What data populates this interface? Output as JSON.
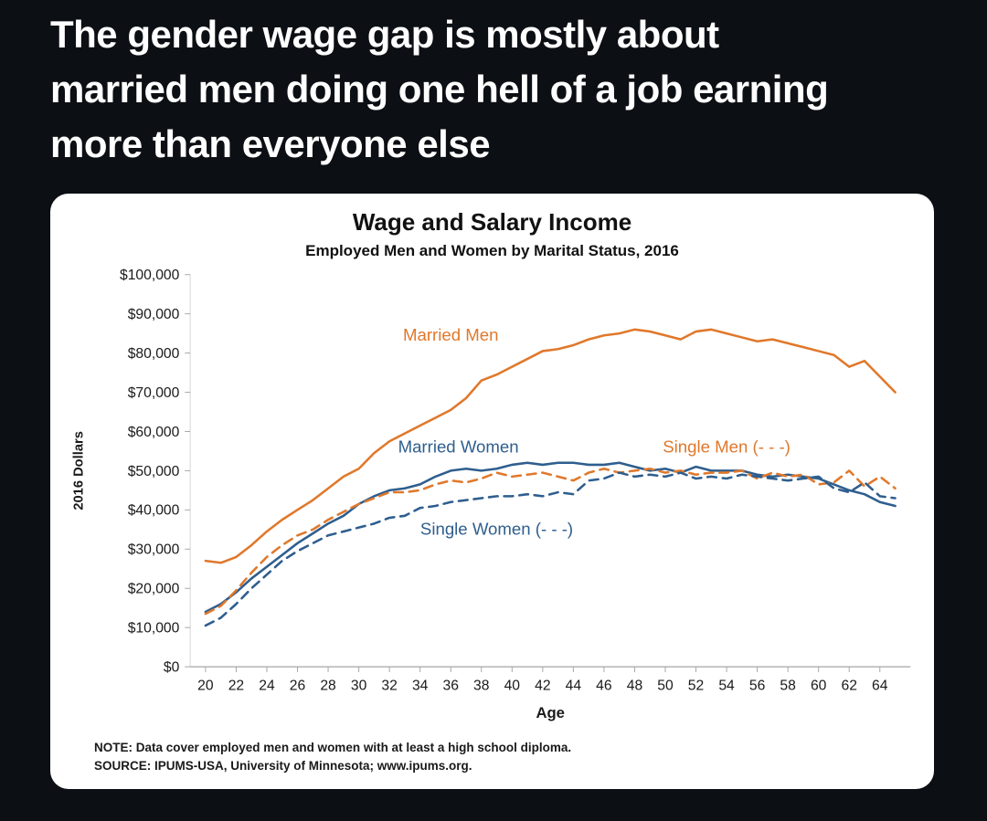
{
  "theme": {
    "background": "#0c0f14",
    "card": "#ffffff",
    "heading_text": "#ffffff",
    "orange": "#E0782B",
    "blue": "#2E5E8E"
  },
  "post": {
    "heading": "The gender wage gap is mostly about married men doing one hell of a job earning more than everyone else",
    "heading_lines": [
      "The gender wage gap is mostly about",
      "married men doing one hell of a job earning",
      "more than everyone else"
    ]
  },
  "chart_data": {
    "type": "line",
    "title": "Wage and Salary Income",
    "subtitle": "Employed Men and Women by Marital Status, 2016",
    "xlabel": "Age",
    "ylabel": "2016 Dollars",
    "xlim": [
      19,
      66
    ],
    "ylim": [
      0,
      100000
    ],
    "y_tick_step": 10000,
    "grid": false,
    "legend": "inline-annotations",
    "x_ticks": [
      20,
      22,
      24,
      26,
      28,
      30,
      32,
      34,
      36,
      38,
      40,
      42,
      44,
      46,
      48,
      50,
      52,
      54,
      56,
      58,
      60,
      62,
      64
    ],
    "x": [
      20,
      21,
      22,
      23,
      24,
      25,
      26,
      27,
      28,
      29,
      30,
      31,
      32,
      33,
      34,
      35,
      36,
      37,
      38,
      39,
      40,
      41,
      42,
      43,
      44,
      45,
      46,
      47,
      48,
      49,
      50,
      51,
      52,
      53,
      54,
      55,
      56,
      57,
      58,
      59,
      60,
      61,
      62,
      63,
      64,
      65
    ],
    "series": [
      {
        "name": "Married Men",
        "style": "solid",
        "color": "#E0782B",
        "values": [
          27000,
          26500,
          28000,
          31000,
          34500,
          37500,
          40000,
          42500,
          45500,
          48500,
          50500,
          54500,
          57500,
          59500,
          61500,
          63500,
          65500,
          68500,
          73000,
          74500,
          76500,
          78500,
          80500,
          81000,
          82000,
          83500,
          84500,
          85000,
          86000,
          85500,
          84500,
          83500,
          85500,
          86000,
          85000,
          84000,
          83000,
          83500,
          82500,
          81500,
          80500,
          79500,
          76500,
          78000,
          74000,
          70000
        ]
      },
      {
        "name": "Married Women",
        "style": "solid",
        "color": "#2E5E8E",
        "values": [
          14000,
          16000,
          19000,
          22500,
          25500,
          28500,
          31500,
          34000,
          36500,
          38500,
          41500,
          43500,
          45000,
          45500,
          46500,
          48500,
          50000,
          50500,
          50000,
          50500,
          51500,
          52000,
          51500,
          52000,
          52000,
          51500,
          51500,
          52000,
          51000,
          50000,
          50500,
          49500,
          51000,
          50000,
          50000,
          50000,
          49000,
          48500,
          49000,
          48500,
          48000,
          46500,
          45000,
          44000,
          42000,
          41000
        ]
      },
      {
        "name": "Single Men",
        "style": "dashed",
        "color": "#E0782B",
        "values": [
          13500,
          15500,
          19500,
          24000,
          28000,
          31000,
          33500,
          35000,
          37500,
          39500,
          41500,
          43000,
          44500,
          44500,
          45000,
          46500,
          47500,
          47000,
          48000,
          49500,
          48500,
          49000,
          49500,
          48500,
          47500,
          49500,
          50500,
          49500,
          50000,
          50500,
          49500,
          50000,
          49000,
          49500,
          49500,
          50000,
          48000,
          49500,
          48500,
          49000,
          46500,
          47000,
          50000,
          46000,
          48500,
          45500
        ]
      },
      {
        "name": "Single Women",
        "style": "dashed",
        "color": "#2E5E8E",
        "values": [
          10500,
          12500,
          16000,
          20000,
          23500,
          27000,
          29500,
          31500,
          33500,
          34500,
          35500,
          36500,
          38000,
          38500,
          40500,
          41000,
          42000,
          42500,
          43000,
          43500,
          43500,
          44000,
          43500,
          44500,
          44000,
          47500,
          48000,
          49500,
          48500,
          49000,
          48500,
          49500,
          48000,
          48500,
          48000,
          49000,
          48500,
          48000,
          47500,
          48000,
          48500,
          45500,
          44500,
          47000,
          43500,
          43000
        ]
      }
    ],
    "annotations": [
      {
        "text": "Married Men",
        "x": 36,
        "y": 84500,
        "color": "#E0782B"
      },
      {
        "text": "Married Women",
        "x": 36.5,
        "y": 56000,
        "color": "#2E5E8E"
      },
      {
        "text": "Single Men (- - -)",
        "x": 54,
        "y": 56000,
        "color": "#E0782B"
      },
      {
        "text": "Single Women (- - -)",
        "x": 39,
        "y": 35000,
        "color": "#2E5E8E"
      }
    ],
    "notes": {
      "note": "NOTE: Data cover employed men and women with at least a high school diploma.",
      "source": "SOURCE: IPUMS-USA, University of Minnesota; www.ipums.org."
    }
  }
}
